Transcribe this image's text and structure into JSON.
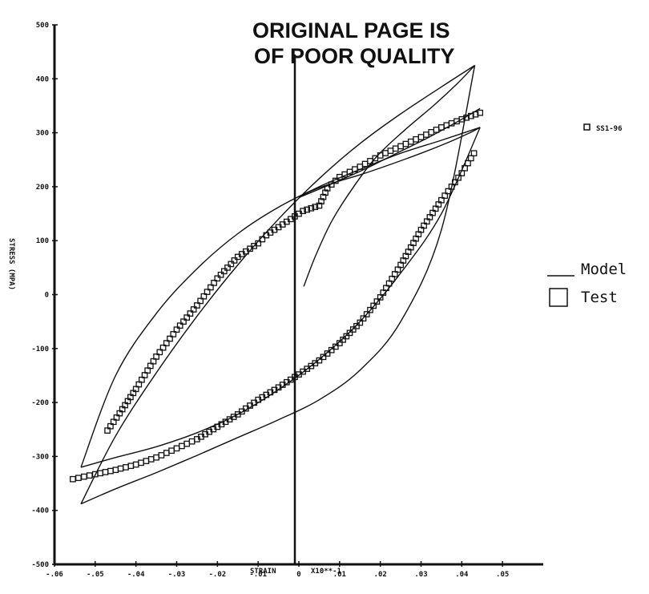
{
  "chart_data": {
    "type": "scatter",
    "stamp_line1": "ORIGINAL PAGE IS",
    "stamp_line2": "OF POOR QUALITY",
    "series_tag": "SS1-96",
    "xlabel": "STRAIN",
    "xscale_note": "X10**-1",
    "ylabel": "STRESS (MPA)",
    "xlim": [
      -0.06,
      0.06
    ],
    "ylim": [
      -500,
      500
    ],
    "x_ticks": [
      -0.06,
      -0.05,
      -0.04,
      -0.03,
      -0.02,
      -0.01,
      0,
      0.01,
      0.02,
      0.03,
      0.04,
      0.05
    ],
    "x_tick_labels": [
      "-.06",
      "-.05",
      "-.04",
      "-.03",
      "-.02",
      "-.01",
      "0",
      ".01",
      ".02",
      ".03",
      ".04",
      ".05"
    ],
    "y_ticks": [
      500,
      400,
      300,
      200,
      100,
      0,
      -100,
      -200,
      -300,
      -400,
      -500
    ],
    "y_tick_labels": [
      "500",
      "400",
      "300",
      "200",
      "100",
      "0",
      "-100",
      "-200",
      "-300",
      "-400",
      "-500"
    ],
    "grid": false,
    "legend": {
      "placement": "right",
      "entries": [
        {
          "label": "Model",
          "marker": "line"
        },
        {
          "label": "Test",
          "marker": "square"
        }
      ]
    },
    "series": [
      {
        "name": "Model",
        "style": "line",
        "segments": [
          {
            "type": "initial_loading",
            "x": [
              0.0012,
              0.004,
              0.008,
              0.013,
              0.019,
              0.026,
              0.033,
              0.039,
              0.0432
            ],
            "y": [
              15,
              70,
              135,
              195,
              255,
              305,
              350,
              392,
              425
            ]
          },
          {
            "type": "outer_loop_descending",
            "x": [
              0.0432,
              0.035,
              0.025,
              0.015,
              0.005,
              -0.005,
              -0.015,
              -0.025,
              -0.035,
              -0.045,
              -0.0535
            ],
            "y": [
              425,
              385,
              335,
              280,
              215,
              140,
              55,
              -40,
              -145,
              -262,
              -388
            ]
          },
          {
            "type": "outer_loop_ascending",
            "x": [
              -0.0535,
              -0.045,
              -0.035,
              -0.025,
              -0.015,
              -0.005,
              0.005,
              0.015,
              0.025,
              0.035,
              0.0432
            ],
            "y": [
              -388,
              -360,
              -330,
              -298,
              -265,
              -232,
              -195,
              -140,
              -50,
              120,
              425
            ]
          },
          {
            "type": "inner_loop_descending",
            "x": [
              0.0445,
              0.035,
              0.025,
              0.015,
              0.005,
              -0.005,
              -0.015,
              -0.025,
              -0.035,
              -0.045,
              -0.0535
            ],
            "y": [
              310,
              286,
              262,
              232,
              200,
              162,
              113,
              48,
              -35,
              -150,
              -320
            ]
          },
          {
            "type": "inner_loop_ascending",
            "x": [
              -0.0535,
              -0.045,
              -0.035,
              -0.025,
              -0.015,
              -0.005,
              0.005,
              0.015,
              0.025,
              0.035,
              0.0445
            ],
            "y": [
              -320,
              -302,
              -282,
              -256,
              -222,
              -176,
              -120,
              -50,
              40,
              150,
              310
            ]
          },
          {
            "type": "loading_to_peak",
            "x": [
              0.0445,
              0.042,
              0.037,
              0.03,
              0.022,
              0.015,
              0.008,
              0.003,
              0.0
            ],
            "y": [
              310,
              300,
              283,
              262,
              240,
              222,
              206,
              192,
              180
            ]
          },
          {
            "type": "upper_branch_to_peak",
            "x": [
              0.0,
              0.008,
              0.016,
              0.024,
              0.032,
              0.04,
              0.0445
            ],
            "y": [
              180,
              205,
              232,
              262,
              292,
              325,
              345
            ]
          }
        ]
      },
      {
        "name": "Test",
        "style": "square_markers",
        "upper_branch": {
          "x": [
            0.0445,
            0.04,
            0.035,
            0.03,
            0.025,
            0.02,
            0.015,
            0.01,
            0.007,
            0.005,
            0.003,
            0.001,
            0.0,
            -0.002,
            -0.005,
            -0.008,
            -0.01,
            -0.015,
            -0.02,
            -0.025,
            -0.03,
            -0.035,
            -0.04,
            -0.044,
            -0.047
          ],
          "y": [
            337,
            325,
            310,
            292,
            275,
            258,
            237,
            218,
            197,
            165,
            160,
            155,
            150,
            140,
            125,
            110,
            95,
            70,
            30,
            -20,
            -65,
            -115,
            -175,
            -220,
            -252
          ]
        },
        "lower_branch": {
          "x": [
            -0.0555,
            -0.05,
            -0.045,
            -0.04,
            -0.035,
            -0.03,
            -0.025,
            -0.02,
            -0.015,
            -0.01,
            -0.005,
            0.0,
            0.005,
            0.01,
            0.015,
            0.02,
            0.025,
            0.03,
            0.035,
            0.04,
            0.043
          ],
          "y": [
            -342,
            -333,
            -325,
            -315,
            -302,
            -285,
            -268,
            -245,
            -222,
            -195,
            -172,
            -148,
            -122,
            -90,
            -52,
            -5,
            55,
            120,
            175,
            225,
            262
          ]
        }
      }
    ]
  },
  "colors": {
    "ink": "#111111",
    "background": "#ffffff"
  }
}
